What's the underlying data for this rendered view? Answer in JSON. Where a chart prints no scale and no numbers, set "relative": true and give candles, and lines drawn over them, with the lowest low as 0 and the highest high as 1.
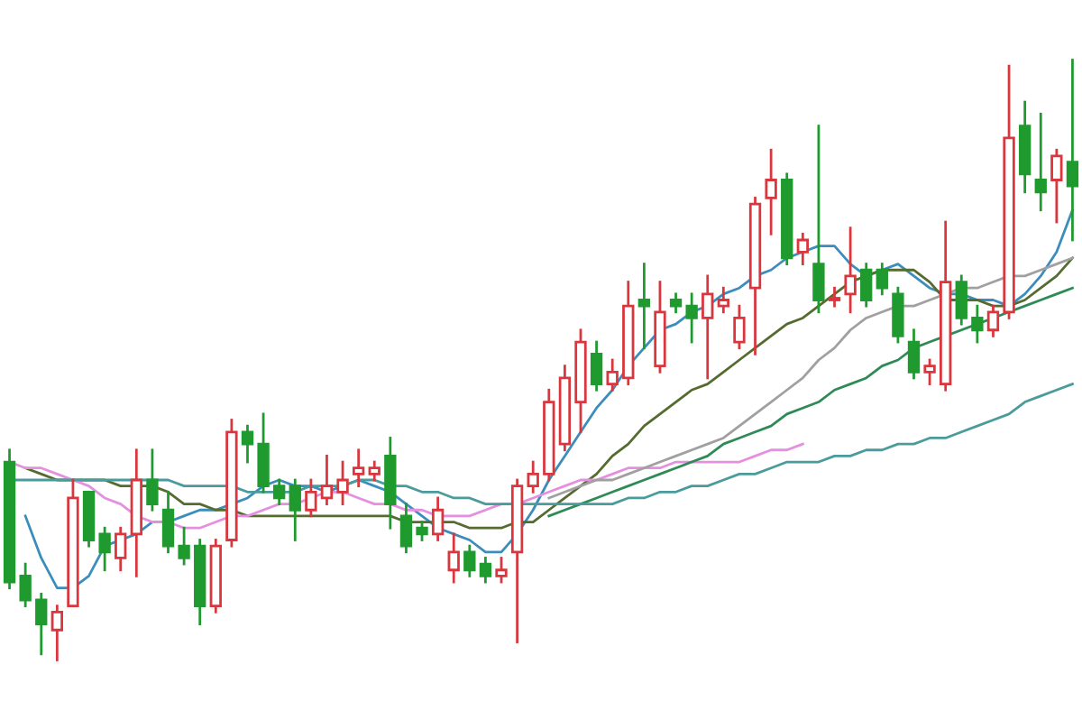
{
  "chart_data": {
    "type": "candlestick",
    "relative": true,
    "categories": [
      null,
      null,
      null,
      null,
      null,
      null,
      null,
      null,
      null,
      null,
      null,
      null,
      null,
      null,
      null,
      null,
      null,
      null,
      null,
      null,
      null,
      null,
      null,
      null,
      null,
      null,
      null,
      null,
      null,
      null,
      null,
      null,
      null,
      null,
      null,
      null,
      null,
      null,
      null,
      null,
      null,
      null,
      null,
      null,
      null,
      null,
      null,
      null,
      null,
      null,
      null,
      null,
      null,
      null,
      null,
      null,
      null,
      null,
      null,
      null,
      null,
      null,
      null,
      null,
      null,
      null,
      null,
      null
    ],
    "ohlc": [
      [
        0.33,
        0.35,
        0.12,
        0.13
      ],
      [
        0.14,
        0.16,
        0.09,
        0.1
      ],
      [
        0.1,
        0.11,
        0.01,
        0.06
      ],
      [
        0.05,
        0.09,
        0.0,
        0.08
      ],
      [
        0.09,
        0.3,
        0.09,
        0.27
      ],
      [
        0.28,
        0.28,
        0.19,
        0.2
      ],
      [
        0.21,
        0.22,
        0.15,
        0.18
      ],
      [
        0.17,
        0.22,
        0.15,
        0.21
      ],
      [
        0.21,
        0.35,
        0.14,
        0.3
      ],
      [
        0.3,
        0.35,
        0.25,
        0.26
      ],
      [
        0.25,
        0.28,
        0.18,
        0.19
      ],
      [
        0.19,
        0.22,
        0.16,
        0.17
      ],
      [
        0.19,
        0.2,
        0.06,
        0.09
      ],
      [
        0.09,
        0.2,
        0.08,
        0.19
      ],
      [
        0.2,
        0.4,
        0.19,
        0.38
      ],
      [
        0.38,
        0.39,
        0.33,
        0.36
      ],
      [
        0.36,
        0.41,
        0.28,
        0.29
      ],
      [
        0.29,
        0.3,
        0.26,
        0.27
      ],
      [
        0.29,
        0.3,
        0.2,
        0.25
      ],
      [
        0.25,
        0.3,
        0.24,
        0.28
      ],
      [
        0.27,
        0.34,
        0.26,
        0.29
      ],
      [
        0.28,
        0.33,
        0.26,
        0.3
      ],
      [
        0.31,
        0.35,
        0.29,
        0.32
      ],
      [
        0.31,
        0.33,
        0.3,
        0.32
      ],
      [
        0.34,
        0.37,
        0.22,
        0.26
      ],
      [
        0.24,
        0.26,
        0.18,
        0.19
      ],
      [
        0.22,
        0.23,
        0.2,
        0.21
      ],
      [
        0.21,
        0.27,
        0.2,
        0.25
      ],
      [
        0.15,
        0.21,
        0.13,
        0.18
      ],
      [
        0.18,
        0.19,
        0.14,
        0.15
      ],
      [
        0.16,
        0.17,
        0.13,
        0.14
      ],
      [
        0.14,
        0.17,
        0.13,
        0.15
      ],
      [
        0.18,
        0.3,
        0.03,
        0.29
      ],
      [
        0.29,
        0.33,
        0.28,
        0.31
      ],
      [
        0.31,
        0.45,
        0.3,
        0.43
      ],
      [
        0.36,
        0.49,
        0.35,
        0.47
      ],
      [
        0.43,
        0.55,
        0.38,
        0.53
      ],
      [
        0.51,
        0.53,
        0.45,
        0.46
      ],
      [
        0.46,
        0.5,
        0.45,
        0.48
      ],
      [
        0.47,
        0.63,
        0.46,
        0.59
      ],
      [
        0.6,
        0.66,
        0.52,
        0.59
      ],
      [
        0.49,
        0.63,
        0.48,
        0.58
      ],
      [
        0.6,
        0.61,
        0.58,
        0.59
      ],
      [
        0.59,
        0.61,
        0.53,
        0.57
      ],
      [
        0.57,
        0.64,
        0.47,
        0.61
      ],
      [
        0.59,
        0.62,
        0.58,
        0.6
      ],
      [
        0.53,
        0.59,
        0.52,
        0.57
      ],
      [
        0.62,
        0.77,
        0.51,
        0.76
      ],
      [
        0.77,
        0.85,
        0.71,
        0.8
      ],
      [
        0.8,
        0.81,
        0.66,
        0.67
      ],
      [
        0.68,
        0.71,
        0.66,
        0.7
      ],
      [
        0.66,
        0.89,
        0.58,
        0.6
      ],
      [
        0.6,
        0.62,
        0.59,
        0.6
      ],
      [
        0.61,
        0.72,
        0.58,
        0.64
      ],
      [
        0.65,
        0.66,
        0.59,
        0.6
      ],
      [
        0.65,
        0.66,
        0.61,
        0.62
      ],
      [
        0.61,
        0.62,
        0.53,
        0.54
      ],
      [
        0.53,
        0.55,
        0.47,
        0.48
      ],
      [
        0.48,
        0.5,
        0.46,
        0.49
      ],
      [
        0.46,
        0.73,
        0.45,
        0.63
      ],
      [
        0.63,
        0.64,
        0.56,
        0.57
      ],
      [
        0.57,
        0.59,
        0.53,
        0.55
      ],
      [
        0.55,
        0.59,
        0.54,
        0.58
      ],
      [
        0.58,
        0.99,
        0.57,
        0.87
      ],
      [
        0.89,
        0.93,
        0.78,
        0.81
      ],
      [
        0.8,
        0.91,
        0.75,
        0.78
      ],
      [
        0.8,
        0.85,
        0.73,
        0.84
      ],
      [
        0.83,
        1.0,
        0.7,
        0.79
      ]
    ],
    "colors": [
      "#1f9a2e",
      "#1f9a2e",
      "#1f9a2e",
      "#d9363e",
      "#d9363e",
      "#1f9a2e",
      "#1f9a2e",
      "#d9363e",
      "#d9363e",
      "#1f9a2e",
      "#1f9a2e",
      "#1f9a2e",
      "#1f9a2e",
      "#d9363e",
      "#d9363e",
      "#1f9a2e",
      "#1f9a2e",
      "#1f9a2e",
      "#1f9a2e",
      "#d9363e",
      "#d9363e",
      "#d9363e",
      "#d9363e",
      "#d9363e",
      "#1f9a2e",
      "#1f9a2e",
      "#1f9a2e",
      "#d9363e",
      "#d9363e",
      "#1f9a2e",
      "#1f9a2e",
      "#d9363e",
      "#d9363e",
      "#d9363e",
      "#d9363e",
      "#d9363e",
      "#d9363e",
      "#1f9a2e",
      "#d9363e",
      "#d9363e",
      "#1f9a2e",
      "#d9363e",
      "#1f9a2e",
      "#1f9a2e",
      "#d9363e",
      "#d9363e",
      "#d9363e",
      "#d9363e",
      "#d9363e",
      "#1f9a2e",
      "#d9363e",
      "#1f9a2e",
      "#d9363e",
      "#d9363e",
      "#1f9a2e",
      "#1f9a2e",
      "#1f9a2e",
      "#1f9a2e",
      "#d9363e",
      "#d9363e",
      "#1f9a2e",
      "#1f9a2e",
      "#d9363e",
      "#d9363e",
      "#1f9a2e",
      "#1f9a2e",
      "#d9363e",
      "#1f9a2e"
    ],
    "series": [
      {
        "type": "line",
        "color": "#3c8dbc",
        "values": [
          null,
          0.24,
          0.17,
          0.12,
          0.12,
          0.14,
          0.19,
          0.2,
          0.21,
          0.23,
          0.23,
          0.24,
          0.25,
          0.25,
          0.26,
          0.27,
          0.29,
          0.3,
          0.29,
          0.29,
          0.28,
          0.29,
          0.3,
          0.29,
          0.28,
          0.26,
          0.24,
          0.22,
          0.21,
          0.2,
          0.18,
          0.18,
          0.21,
          0.25,
          0.3,
          0.34,
          0.38,
          0.42,
          0.45,
          0.49,
          0.52,
          0.55,
          0.56,
          0.58,
          0.59,
          0.61,
          0.62,
          0.64,
          0.65,
          0.67,
          0.68,
          0.69,
          0.69,
          0.66,
          0.64,
          0.65,
          0.66,
          0.64,
          0.62,
          0.61,
          0.61,
          0.6,
          0.6,
          0.59,
          0.61,
          0.64,
          0.68,
          0.75
        ]
      },
      {
        "type": "line",
        "color": "#556b2f",
        "values": [
          null,
          0.32,
          0.31,
          0.3,
          0.3,
          0.3,
          0.3,
          0.29,
          0.29,
          0.29,
          0.28,
          0.26,
          0.26,
          0.25,
          0.25,
          0.24,
          0.24,
          0.24,
          0.24,
          0.24,
          0.24,
          0.24,
          0.24,
          0.24,
          0.24,
          0.23,
          0.23,
          0.23,
          0.23,
          0.22,
          0.22,
          0.22,
          0.23,
          0.23,
          0.25,
          0.27,
          0.29,
          0.31,
          0.34,
          0.36,
          0.39,
          0.41,
          0.43,
          0.45,
          0.46,
          0.48,
          0.5,
          0.52,
          0.54,
          0.56,
          0.57,
          0.59,
          0.61,
          0.63,
          0.64,
          0.65,
          0.65,
          0.65,
          0.63,
          0.6,
          0.6,
          0.6,
          0.59,
          0.59,
          0.6,
          0.62,
          0.64,
          0.67
        ]
      },
      {
        "type": "line",
        "color": "#e58fe0",
        "values": [
          0.33,
          0.32,
          0.32,
          0.31,
          0.3,
          0.29,
          0.27,
          0.26,
          0.24,
          0.23,
          0.23,
          0.22,
          0.22,
          0.23,
          0.24,
          0.24,
          0.25,
          0.26,
          0.26,
          0.27,
          0.28,
          0.28,
          0.27,
          0.26,
          0.26,
          0.25,
          0.25,
          0.24,
          0.24,
          0.24,
          0.25,
          0.26,
          0.26,
          0.27,
          0.28,
          0.29,
          0.3,
          0.3,
          0.31,
          0.32,
          0.32,
          0.32,
          0.33,
          0.33,
          0.33,
          0.33,
          0.33,
          0.34,
          0.35,
          0.35,
          0.36,
          null,
          null,
          null,
          null,
          null,
          null,
          null,
          null,
          null,
          null,
          null,
          null,
          null,
          null,
          null,
          null,
          null
        ]
      },
      {
        "type": "line",
        "color": "#a0a0a0",
        "values": [
          null,
          null,
          null,
          null,
          null,
          null,
          null,
          null,
          null,
          null,
          null,
          null,
          null,
          null,
          null,
          null,
          null,
          null,
          null,
          null,
          null,
          null,
          null,
          null,
          null,
          null,
          null,
          null,
          null,
          null,
          null,
          null,
          null,
          null,
          0.27,
          0.28,
          0.29,
          0.3,
          0.3,
          0.31,
          0.32,
          0.33,
          0.34,
          0.35,
          0.36,
          0.37,
          0.39,
          0.41,
          0.43,
          0.45,
          0.47,
          0.5,
          0.52,
          0.55,
          0.57,
          0.58,
          0.59,
          0.59,
          0.6,
          0.61,
          0.62,
          0.62,
          0.63,
          0.64,
          0.64,
          0.65,
          0.66,
          0.67
        ]
      },
      {
        "type": "line",
        "color": "#2e8b57",
        "values": [
          null,
          null,
          null,
          null,
          null,
          null,
          null,
          null,
          null,
          null,
          null,
          null,
          null,
          null,
          null,
          null,
          null,
          null,
          null,
          null,
          null,
          null,
          null,
          null,
          null,
          null,
          null,
          null,
          null,
          null,
          null,
          null,
          null,
          null,
          0.24,
          0.25,
          0.26,
          0.27,
          0.28,
          0.29,
          0.3,
          0.31,
          0.32,
          0.33,
          0.34,
          0.36,
          0.37,
          0.38,
          0.39,
          0.41,
          0.42,
          0.43,
          0.45,
          0.46,
          0.47,
          0.49,
          0.5,
          0.52,
          0.53,
          0.54,
          0.55,
          0.56,
          0.57,
          0.58,
          0.59,
          0.6,
          0.61,
          0.62
        ]
      },
      {
        "type": "line",
        "color": "#4a9b9b",
        "values": [
          0.3,
          0.3,
          0.3,
          0.3,
          0.3,
          0.3,
          0.3,
          0.3,
          0.3,
          0.3,
          0.3,
          0.29,
          0.29,
          0.29,
          0.29,
          0.28,
          0.28,
          0.28,
          0.28,
          0.29,
          0.29,
          0.29,
          0.3,
          0.3,
          0.29,
          0.29,
          0.28,
          0.28,
          0.27,
          0.27,
          0.26,
          0.26,
          0.26,
          0.26,
          0.26,
          0.26,
          0.26,
          0.26,
          0.26,
          0.27,
          0.27,
          0.28,
          0.28,
          0.29,
          0.29,
          0.3,
          0.31,
          0.31,
          0.32,
          0.33,
          0.33,
          0.33,
          0.34,
          0.34,
          0.35,
          0.35,
          0.36,
          0.36,
          0.37,
          0.37,
          0.38,
          0.39,
          0.4,
          0.41,
          0.43,
          0.44,
          0.45,
          0.46
        ]
      }
    ]
  }
}
